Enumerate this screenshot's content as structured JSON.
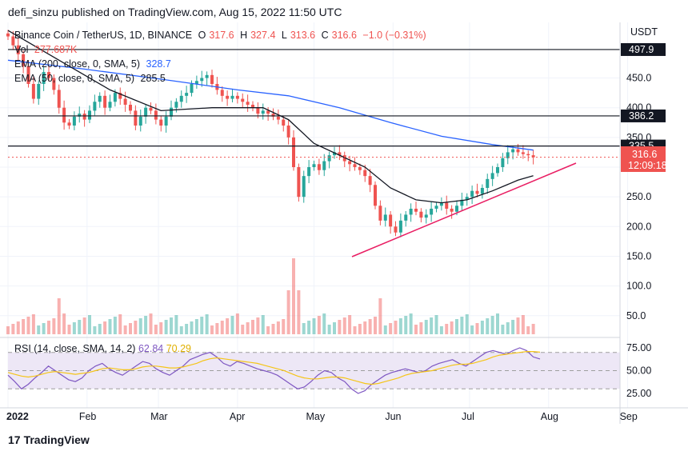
{
  "header": {
    "text": "defi_sinzu published on TradingView.com, Aug 15, 2022 11:50 UTC"
  },
  "legend": {
    "symbol": "Binance Coin / TetherUS, 1D, BINANCE",
    "o_label": "O",
    "o": "317.6",
    "h_label": "H",
    "h": "327.4",
    "l_label": "L",
    "l": "313.6",
    "c_label": "C",
    "c": "316.6",
    "change": "−1.0 (−0.31%)",
    "vol_label": "Vol",
    "vol": "277.687K",
    "ema200_label": "EMA (200, close, 0, SMA, 5)",
    "ema200": "328.7",
    "ema50_label": "EMA (50, close, 0, SMA, 5)",
    "ema50": "285.5"
  },
  "rsi_legend": {
    "label": "RSI (14, close, SMA, 14, 2)",
    "rsi": "62.84",
    "sma": "70.29"
  },
  "footer": {
    "brand": "TradingView"
  },
  "colors": {
    "up": "#26a69a",
    "down": "#ef5350",
    "ema200": "#2962ff",
    "ema50": "#131722",
    "trend": "#e91e63",
    "rsi": "#7e57c2",
    "rsi_sma": "#f5c518",
    "rsi_band": "#ede7f6"
  },
  "chart_data": {
    "type": "candlestick",
    "title": "Binance Coin / TetherUS, 1D, BINANCE",
    "currency": "USDT",
    "x_ticks": [
      "2022",
      "Feb",
      "Mar",
      "Apr",
      "May",
      "Jun",
      "Jul",
      "Aug",
      "Sep"
    ],
    "y_ticks": [
      50,
      100,
      150,
      200,
      250,
      300,
      350,
      400,
      450
    ],
    "ylim": [
      10,
      540
    ],
    "last_price": "316.6",
    "countdown": "12:09:18",
    "horizontal_levels": [
      {
        "value": 497.9,
        "label": "497.9"
      },
      {
        "value": 386.2,
        "label": "386.2"
      },
      {
        "value": 335.5,
        "label": "335.5"
      }
    ],
    "trendline": {
      "from": [
        "2022-06-01",
        162
      ],
      "to": [
        "2022-09-01",
        287
      ]
    },
    "ohlc_closes": [
      [
        0,
        520
      ],
      [
        2,
        505
      ],
      [
        4,
        490
      ],
      [
        6,
        470
      ],
      [
        8,
        440
      ],
      [
        10,
        415
      ],
      [
        12,
        440
      ],
      [
        14,
        460
      ],
      [
        16,
        450
      ],
      [
        18,
        430
      ],
      [
        20,
        400
      ],
      [
        22,
        375
      ],
      [
        24,
        370
      ],
      [
        26,
        385
      ],
      [
        28,
        390
      ],
      [
        30,
        380
      ],
      [
        32,
        395
      ],
      [
        34,
        410
      ],
      [
        36,
        420
      ],
      [
        38,
        400
      ],
      [
        40,
        410
      ],
      [
        42,
        425
      ],
      [
        44,
        415
      ],
      [
        46,
        405
      ],
      [
        48,
        395
      ],
      [
        50,
        370
      ],
      [
        52,
        385
      ],
      [
        54,
        400
      ],
      [
        56,
        395
      ],
      [
        58,
        380
      ],
      [
        60,
        370
      ],
      [
        62,
        385
      ],
      [
        64,
        400
      ],
      [
        66,
        410
      ],
      [
        68,
        420
      ],
      [
        70,
        425
      ],
      [
        72,
        440
      ],
      [
        74,
        445
      ],
      [
        76,
        450
      ],
      [
        78,
        455
      ],
      [
        80,
        440
      ],
      [
        82,
        430
      ],
      [
        84,
        420
      ],
      [
        86,
        415
      ],
      [
        88,
        420
      ],
      [
        90,
        415
      ],
      [
        92,
        410
      ],
      [
        94,
        405
      ],
      [
        96,
        400
      ],
      [
        98,
        390
      ],
      [
        100,
        395
      ],
      [
        102,
        390
      ],
      [
        104,
        385
      ],
      [
        106,
        380
      ],
      [
        108,
        370
      ],
      [
        110,
        350
      ],
      [
        112,
        300
      ],
      [
        114,
        250
      ],
      [
        116,
        285
      ],
      [
        118,
        300
      ],
      [
        120,
        305
      ],
      [
        122,
        295
      ],
      [
        124,
        310
      ],
      [
        126,
        320
      ],
      [
        128,
        325
      ],
      [
        130,
        320
      ],
      [
        132,
        310
      ],
      [
        134,
        305
      ],
      [
        136,
        300
      ],
      [
        138,
        295
      ],
      [
        140,
        285
      ],
      [
        142,
        270
      ],
      [
        144,
        235
      ],
      [
        146,
        210
      ],
      [
        148,
        220
      ],
      [
        150,
        200
      ],
      [
        152,
        190
      ],
      [
        154,
        210
      ],
      [
        156,
        220
      ],
      [
        158,
        230
      ],
      [
        160,
        225
      ],
      [
        162,
        215
      ],
      [
        164,
        220
      ],
      [
        166,
        230
      ],
      [
        168,
        235
      ],
      [
        170,
        240
      ],
      [
        172,
        230
      ],
      [
        174,
        225
      ],
      [
        176,
        235
      ],
      [
        178,
        245
      ],
      [
        180,
        250
      ],
      [
        182,
        260
      ],
      [
        184,
        255
      ],
      [
        186,
        265
      ],
      [
        188,
        280
      ],
      [
        190,
        290
      ],
      [
        192,
        300
      ],
      [
        194,
        315
      ],
      [
        196,
        325
      ],
      [
        198,
        330
      ],
      [
        200,
        325
      ],
      [
        202,
        322
      ],
      [
        204,
        320
      ],
      [
        206,
        316.6
      ]
    ],
    "ema200": [
      [
        0,
        480
      ],
      [
        30,
        465
      ],
      [
        60,
        448
      ],
      [
        90,
        430
      ],
      [
        110,
        420
      ],
      [
        130,
        400
      ],
      [
        150,
        375
      ],
      [
        170,
        352
      ],
      [
        190,
        338
      ],
      [
        206,
        328.7
      ]
    ],
    "ema50": [
      [
        0,
        530
      ],
      [
        20,
        480
      ],
      [
        40,
        430
      ],
      [
        60,
        395
      ],
      [
        80,
        400
      ],
      [
        100,
        400
      ],
      [
        110,
        380
      ],
      [
        120,
        340
      ],
      [
        130,
        320
      ],
      [
        140,
        300
      ],
      [
        150,
        265
      ],
      [
        160,
        245
      ],
      [
        170,
        240
      ],
      [
        180,
        245
      ],
      [
        190,
        260
      ],
      [
        200,
        278
      ],
      [
        206,
        285.5
      ]
    ],
    "rsi_ticks": [
      25,
      50,
      75
    ],
    "rsi_values": [
      45,
      38,
      30,
      35,
      42,
      48,
      55,
      50,
      45,
      40,
      38,
      42,
      50,
      55,
      58,
      52,
      48,
      45,
      50,
      55,
      60,
      58,
      52,
      48,
      45,
      50,
      55,
      62,
      65,
      68,
      70,
      65,
      58,
      55,
      60,
      58,
      55,
      52,
      50,
      48,
      45,
      40,
      35,
      30,
      32,
      38,
      45,
      50,
      48,
      42,
      38,
      30,
      25,
      28,
      35,
      40,
      45,
      48,
      50,
      52,
      50,
      48,
      50,
      55,
      58,
      60,
      62,
      58,
      55,
      60,
      65,
      70,
      72,
      70,
      68,
      72,
      75,
      72,
      65,
      62.84
    ],
    "rsi_sma": [
      48,
      46,
      44,
      43,
      44,
      46,
      48,
      49,
      48,
      47,
      46,
      47,
      48,
      50,
      52,
      53,
      52,
      51,
      51,
      52,
      54,
      55,
      55,
      54,
      53,
      53,
      54,
      56,
      58,
      61,
      63,
      64,
      63,
      62,
      61,
      60,
      59,
      58,
      56,
      54,
      52,
      50,
      47,
      44,
      42,
      41,
      41,
      42,
      43,
      43,
      42,
      40,
      38,
      36,
      35,
      36,
      38,
      40,
      42,
      45,
      47,
      48,
      49,
      50,
      52,
      54,
      56,
      57,
      57,
      58,
      60,
      62,
      65,
      67,
      68,
      69,
      70,
      71,
      71,
      70.29
    ],
    "volume_spike_index": 112
  }
}
